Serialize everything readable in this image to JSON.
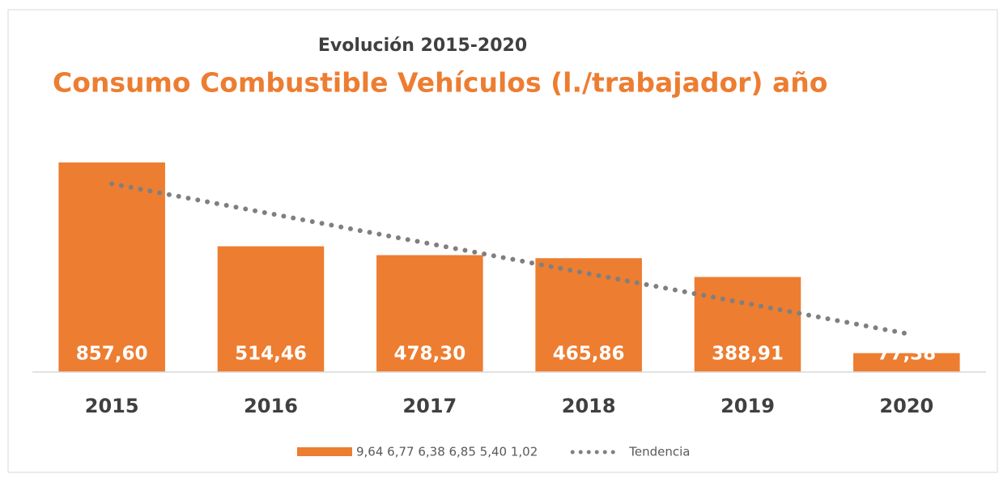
{
  "chart_data": {
    "type": "bar",
    "title": "Evolución 2015-2020",
    "subtitle": "Consumo Combustible Vehículos (l./trabajador) año",
    "categories": [
      "2015",
      "2016",
      "2017",
      "2018",
      "2019",
      "2020"
    ],
    "series": [
      {
        "name": "9,64 6,77 6,38 6,85 5,40 1,02",
        "color": "#ed7d31",
        "type": "bar",
        "values": [
          857.6,
          514.46,
          478.3,
          465.86,
          388.91,
          77.38
        ],
        "value_labels": [
          "857,60",
          "514,46",
          "478,30",
          "465,86",
          "388,91",
          "77,38"
        ]
      },
      {
        "name": "Tendencia",
        "color": "#7f7f7f",
        "type": "line",
        "style": "dotted",
        "values": [
          770.19,
          647.61,
          525.03,
          402.46,
          279.88,
          157.3
        ]
      }
    ],
    "ylim": [
      0,
      900
    ]
  }
}
